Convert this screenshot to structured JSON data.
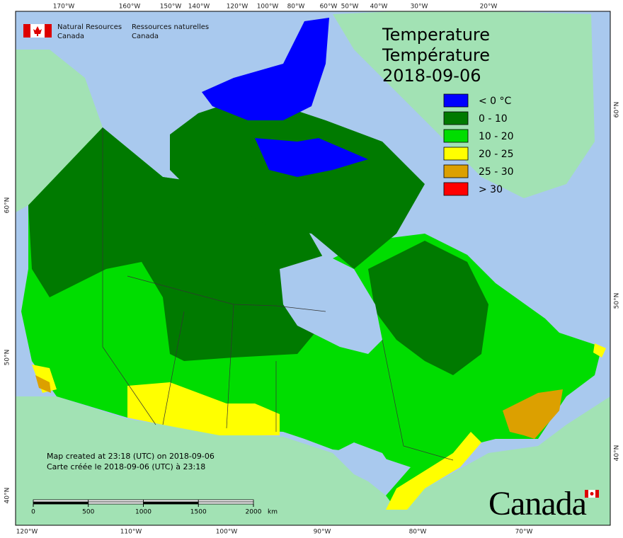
{
  "header": {
    "org_en_1": "Natural Resources",
    "org_en_2": "Canada",
    "org_fr_1": "Ressources naturelles",
    "org_fr_2": "Canada"
  },
  "title": {
    "line1": "Temperature",
    "line2": "Température",
    "date": "2018-09-06"
  },
  "legend": [
    {
      "label": "< 0 °C",
      "color": "#0000ff"
    },
    {
      "label": "0 - 10",
      "color": "#007a00"
    },
    {
      "label": "10 - 20",
      "color": "#00dd00"
    },
    {
      "label": "20 - 25",
      "color": "#ffff00"
    },
    {
      "label": "25 - 30",
      "color": "#dca000"
    },
    {
      "label": "> 30",
      "color": "#ff0000"
    }
  ],
  "graticule": {
    "top": [
      "170°W",
      "160°W",
      "150°W",
      "140°W",
      "120°W",
      "100°W",
      "80°W",
      "60°W",
      "50°W",
      "40°W",
      "30°W",
      "20°W"
    ],
    "bottom": [
      "120°W",
      "110°W",
      "100°W",
      "90°W",
      "80°W",
      "70°W"
    ],
    "left": [
      "60°N",
      "50°N",
      "40°N"
    ],
    "right": [
      "60°N",
      "50°N",
      "40°N"
    ]
  },
  "credits": [
    "Map created at 23:18 (UTC) on 2018-09-06",
    "Carte créée le 2018-09-06 (UTC) à 23:18"
  ],
  "scale_bar": {
    "ticks": [
      0,
      500,
      1000,
      1500,
      2000
    ],
    "unit": "km"
  },
  "wordmark": "Canada"
}
